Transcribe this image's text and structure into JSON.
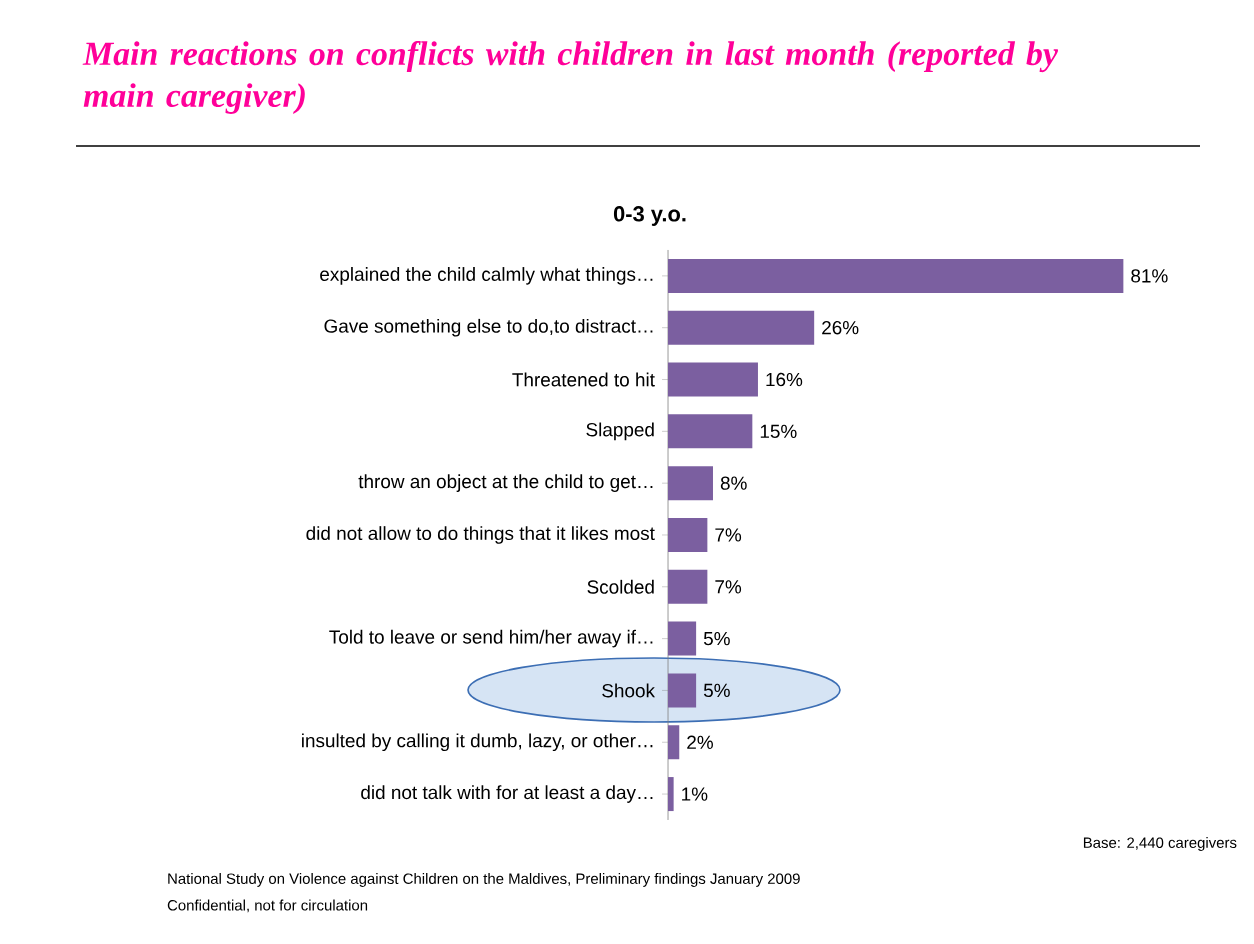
{
  "chart_data": {
    "type": "bar",
    "orientation": "horizontal",
    "title": "Main reactions on conflicts with children in last month (reported by main caregiver)",
    "subtitle": "0-3 y.o.",
    "categories": [
      "explained the child calmly what things…",
      "Gave something else to do,to distract…",
      "Threatened to hit",
      "Slapped",
      "throw an object at the child to get…",
      "did not allow to do things that it likes most",
      "Scolded",
      "Told to leave  or send him/her away if…",
      "Shook",
      "insulted by calling it dumb, lazy, or other…",
      "did not talk with for at least a day…"
    ],
    "values": [
      81,
      26,
      16,
      15,
      8,
      7,
      7,
      5,
      5,
      2,
      1
    ],
    "value_labels": [
      "81%",
      "26%",
      "16%",
      "15%",
      "8%",
      "7%",
      "7%",
      "5%",
      "5%",
      "2%",
      "1%"
    ],
    "color": "#7b5fa0",
    "annotations": [
      "Base: 2,440 caregivers",
      "National Study on Violence against Children on the Maldives, Preliminary findings January 2009",
      "Confidential, not for circulation"
    ]
  }
}
